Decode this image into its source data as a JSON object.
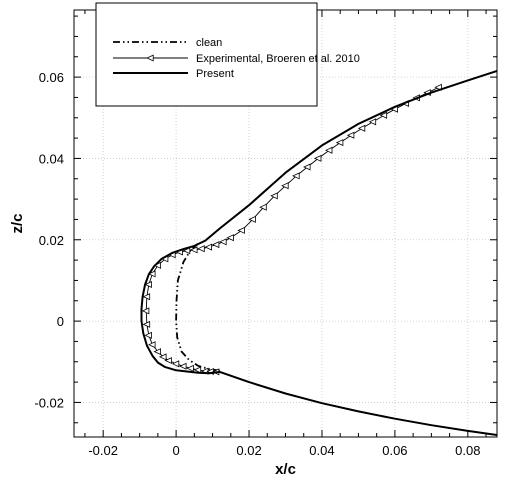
{
  "chart_data": {
    "type": "line",
    "xlabel": "x/c",
    "ylabel": "z/c",
    "xlim": [
      -0.028,
      0.088
    ],
    "ylim": [
      -0.0285,
      0.0765
    ],
    "x_ticks": [
      {
        "v": -0.02,
        "label": "-0.02"
      },
      {
        "v": 0,
        "label": "0"
      },
      {
        "v": 0.02,
        "label": "0.02"
      },
      {
        "v": 0.04,
        "label": "0.04"
      },
      {
        "v": 0.06,
        "label": "0.06"
      },
      {
        "v": 0.08,
        "label": "0.08"
      }
    ],
    "y_ticks": [
      {
        "v": -0.02,
        "label": "-0.02"
      },
      {
        "v": 0,
        "label": "0"
      },
      {
        "v": 0.02,
        "label": "0.02"
      },
      {
        "v": 0.04,
        "label": "0.04"
      },
      {
        "v": 0.06,
        "label": "0.06"
      }
    ],
    "grid": true,
    "legend_position": "top-left",
    "series": [
      {
        "name": "clean",
        "style": "dash-dot-dot",
        "color": "#000000",
        "x": [
          0.006,
          0.004,
          0.002,
          0.0005,
          0.0001,
          0.0,
          0.0003,
          0.0015,
          0.0035,
          0.006,
          0.009,
          0.012
        ],
        "y": [
          0.019,
          0.0175,
          0.0145,
          0.01,
          0.005,
          0.0,
          -0.004,
          -0.0075,
          -0.0095,
          -0.011,
          -0.0118,
          -0.0122
        ]
      },
      {
        "name": "Experimental, Broeren et al. 2010",
        "style": "line-with-left-triangle-markers",
        "color": "#000000",
        "x": [
          0.072,
          0.069,
          0.066,
          0.063,
          0.06,
          0.057,
          0.054,
          0.051,
          0.048,
          0.045,
          0.042,
          0.039,
          0.036,
          0.033,
          0.03,
          0.027,
          0.024,
          0.021,
          0.018,
          0.015,
          0.013,
          0.011,
          0.009,
          0.007,
          0.005,
          0.003,
          0.001,
          -0.001,
          -0.003,
          -0.005,
          -0.0065,
          -0.0075,
          -0.008,
          -0.0082,
          -0.008,
          -0.0075,
          -0.0065,
          -0.005,
          -0.0035,
          -0.002,
          0.0,
          0.002,
          0.004,
          0.006,
          0.008,
          0.0095,
          0.011
        ],
        "y": [
          0.0575,
          0.0562,
          0.0549,
          0.0535,
          0.0521,
          0.0506,
          0.049,
          0.0474,
          0.0457,
          0.0439,
          0.042,
          0.04,
          0.0379,
          0.0357,
          0.0333,
          0.0308,
          0.028,
          0.025,
          0.0223,
          0.0205,
          0.0195,
          0.0188,
          0.0182,
          0.0178,
          0.0175,
          0.0173,
          0.017,
          0.0163,
          0.0153,
          0.0137,
          0.0116,
          0.009,
          0.006,
          0.0025,
          -0.0008,
          -0.0035,
          -0.0058,
          -0.0075,
          -0.0088,
          -0.0097,
          -0.0105,
          -0.0111,
          -0.0116,
          -0.012,
          -0.0123,
          -0.0124,
          -0.0125
        ]
      },
      {
        "name": "Present",
        "style": "solid",
        "color": "#000000",
        "x": [
          0.088,
          0.08,
          0.07,
          0.06,
          0.05,
          0.04,
          0.03,
          0.02,
          0.012,
          0.008,
          0.005,
          0.002,
          -0.001,
          -0.004,
          -0.006,
          -0.0075,
          -0.0085,
          -0.0092,
          -0.0095,
          -0.0095,
          -0.009,
          -0.008,
          -0.0065,
          -0.005,
          -0.003,
          0.0,
          0.003,
          0.006,
          0.009,
          0.012,
          0.02,
          0.03,
          0.04,
          0.05,
          0.06,
          0.07,
          0.08,
          0.088
        ],
        "y": [
          0.0615,
          0.0592,
          0.0562,
          0.0527,
          0.0485,
          0.0432,
          0.0365,
          0.0285,
          0.0228,
          0.0198,
          0.0185,
          0.0177,
          0.0168,
          0.0153,
          0.0135,
          0.0115,
          0.009,
          0.006,
          0.003,
          0.0,
          -0.003,
          -0.006,
          -0.0085,
          -0.0102,
          -0.0113,
          -0.0121,
          -0.0124,
          -0.0127,
          -0.0128,
          -0.0125,
          -0.015,
          -0.0178,
          -0.0202,
          -0.0222,
          -0.024,
          -0.0256,
          -0.027,
          -0.028
        ]
      }
    ]
  }
}
